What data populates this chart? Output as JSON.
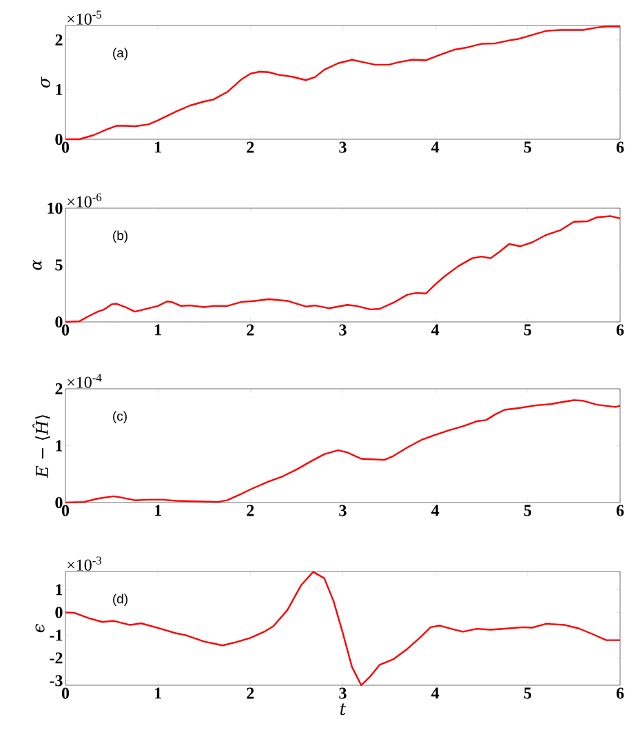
{
  "chart_data": [
    {
      "type": "line",
      "ylabel": "*σ*",
      "annotations": [
        "×10$^{-5}$",
        "(a)"
      ],
      "color": "#ff0000",
      "line_style": "solid",
      "xlim": [
        0,
        6
      ],
      "xticks": [
        0,
        1,
        2,
        3,
        4,
        5,
        6
      ],
      "ylim": [
        0,
        2.29
      ],
      "yticks": [
        0,
        1,
        2
      ],
      "x": [
        0,
        0.15,
        0.3,
        0.45,
        0.55,
        0.65,
        0.75,
        0.9,
        1.0,
        1.2,
        1.35,
        1.5,
        1.6,
        1.75,
        1.9,
        2.0,
        2.1,
        2.2,
        2.3,
        2.45,
        2.6,
        2.7,
        2.8,
        2.95,
        3.1,
        3.2,
        3.35,
        3.5,
        3.6,
        3.75,
        3.9,
        4.05,
        4.2,
        4.35,
        4.5,
        4.65,
        4.8,
        4.9,
        5.05,
        5.2,
        5.35,
        5.5,
        5.6,
        5.75,
        5.85,
        6.0
      ],
      "values": [
        0,
        0.0,
        0.08,
        0.2,
        0.27,
        0.27,
        0.26,
        0.3,
        0.38,
        0.56,
        0.68,
        0.76,
        0.8,
        0.95,
        1.2,
        1.32,
        1.36,
        1.35,
        1.3,
        1.26,
        1.19,
        1.25,
        1.4,
        1.53,
        1.6,
        1.56,
        1.5,
        1.5,
        1.55,
        1.6,
        1.59,
        1.7,
        1.8,
        1.85,
        1.92,
        1.93,
        1.99,
        2.02,
        2.1,
        2.18,
        2.2,
        2.2,
        2.2,
        2.25,
        2.27,
        2.27
      ]
    },
    {
      "type": "line",
      "ylabel": "*α*",
      "annotations": [
        "×10$^{-6}$",
        "(b)"
      ],
      "color": "#ff0000",
      "line_style": "solid",
      "xlim": [
        0,
        6
      ],
      "xticks": [
        0,
        1,
        2,
        3,
        4,
        5,
        6
      ],
      "ylim": [
        0,
        10
      ],
      "yticks": [
        0,
        5,
        10
      ],
      "x": [
        0,
        0.15,
        0.25,
        0.35,
        0.42,
        0.5,
        0.55,
        0.65,
        0.75,
        0.85,
        1.0,
        1.1,
        1.15,
        1.25,
        1.35,
        1.5,
        1.6,
        1.75,
        1.9,
        2.05,
        2.2,
        2.4,
        2.6,
        2.7,
        2.85,
        3.05,
        3.15,
        3.3,
        3.4,
        3.55,
        3.7,
        3.8,
        3.9,
        4.0,
        4.1,
        4.25,
        4.4,
        4.5,
        4.6,
        4.7,
        4.8,
        4.92,
        5.05,
        5.2,
        5.35,
        5.5,
        5.65,
        5.75,
        5.9,
        6.0
      ],
      "values": [
        0,
        0.05,
        0.5,
        0.9,
        1.1,
        1.55,
        1.6,
        1.3,
        0.9,
        1.1,
        1.4,
        1.8,
        1.75,
        1.4,
        1.45,
        1.3,
        1.4,
        1.4,
        1.75,
        1.85,
        2.0,
        1.85,
        1.35,
        1.45,
        1.2,
        1.5,
        1.4,
        1.1,
        1.15,
        1.7,
        2.4,
        2.55,
        2.5,
        3.3,
        4.0,
        4.9,
        5.6,
        5.75,
        5.6,
        6.2,
        6.85,
        6.65,
        7.0,
        7.65,
        8.05,
        8.8,
        8.85,
        9.2,
        9.3,
        9.1
      ]
    },
    {
      "type": "line",
      "ylabel": "*E* − ⟨*Ĥ*⟩",
      "annotations": [
        "×10$^{-4}$",
        "(c)"
      ],
      "color": "#ff0000",
      "line_style": "solid",
      "xlim": [
        0,
        6
      ],
      "xticks": [
        0,
        1,
        2,
        3,
        4,
        5,
        6
      ],
      "ylim": [
        0,
        2
      ],
      "yticks": [
        0,
        1,
        2
      ],
      "x": [
        0,
        0.2,
        0.35,
        0.52,
        0.6,
        0.75,
        0.9,
        1.05,
        1.2,
        1.45,
        1.65,
        1.75,
        1.9,
        2.0,
        2.2,
        2.35,
        2.5,
        2.65,
        2.8,
        2.95,
        3.05,
        3.2,
        3.45,
        3.55,
        3.7,
        3.85,
        4.0,
        4.15,
        4.3,
        4.45,
        4.55,
        4.65,
        4.75,
        4.9,
        5.1,
        5.25,
        5.35,
        5.5,
        5.6,
        5.75,
        5.95,
        6.0
      ],
      "values": [
        0,
        0.01,
        0.07,
        0.11,
        0.09,
        0.04,
        0.05,
        0.05,
        0.03,
        0.02,
        0.01,
        0.04,
        0.15,
        0.23,
        0.37,
        0.46,
        0.58,
        0.72,
        0.85,
        0.92,
        0.88,
        0.77,
        0.75,
        0.82,
        0.97,
        1.1,
        1.19,
        1.27,
        1.34,
        1.43,
        1.45,
        1.55,
        1.63,
        1.66,
        1.71,
        1.73,
        1.76,
        1.8,
        1.79,
        1.72,
        1.68,
        1.7
      ]
    },
    {
      "type": "line",
      "xlabel": "*t*",
      "ylabel": "*ϵ*",
      "annotations": [
        "×10$^{-3}$",
        "(d)"
      ],
      "color": "#ff0000",
      "line_style": "solid",
      "xlim": [
        0,
        6
      ],
      "xticks": [
        0,
        1,
        2,
        3,
        4,
        5,
        6
      ],
      "ylim": [
        -3.2,
        1.8
      ],
      "yticks": [
        -3,
        -2,
        -1,
        0,
        1
      ],
      "x": [
        0,
        0.1,
        0.25,
        0.4,
        0.52,
        0.7,
        0.82,
        1.0,
        1.2,
        1.3,
        1.5,
        1.7,
        1.85,
        2.0,
        2.15,
        2.25,
        2.4,
        2.55,
        2.68,
        2.8,
        2.9,
        3.0,
        3.1,
        3.2,
        3.3,
        3.4,
        3.55,
        3.7,
        3.85,
        3.95,
        4.05,
        4.2,
        4.3,
        4.45,
        4.6,
        4.8,
        4.95,
        5.05,
        5.2,
        5.4,
        5.55,
        5.7,
        5.85,
        6.0
      ],
      "values": [
        0,
        -0.02,
        -0.25,
        -0.42,
        -0.37,
        -0.55,
        -0.48,
        -0.68,
        -0.92,
        -1.0,
        -1.28,
        -1.45,
        -1.3,
        -1.12,
        -0.85,
        -0.6,
        0.1,
        1.2,
        1.78,
        1.5,
        0.5,
        -0.9,
        -2.4,
        -3.2,
        -2.8,
        -2.3,
        -2.05,
        -1.6,
        -1.05,
        -0.65,
        -0.58,
        -0.75,
        -0.85,
        -0.72,
        -0.76,
        -0.7,
        -0.65,
        -0.67,
        -0.5,
        -0.55,
        -0.7,
        -0.95,
        -1.22,
        -1.22
      ]
    }
  ]
}
